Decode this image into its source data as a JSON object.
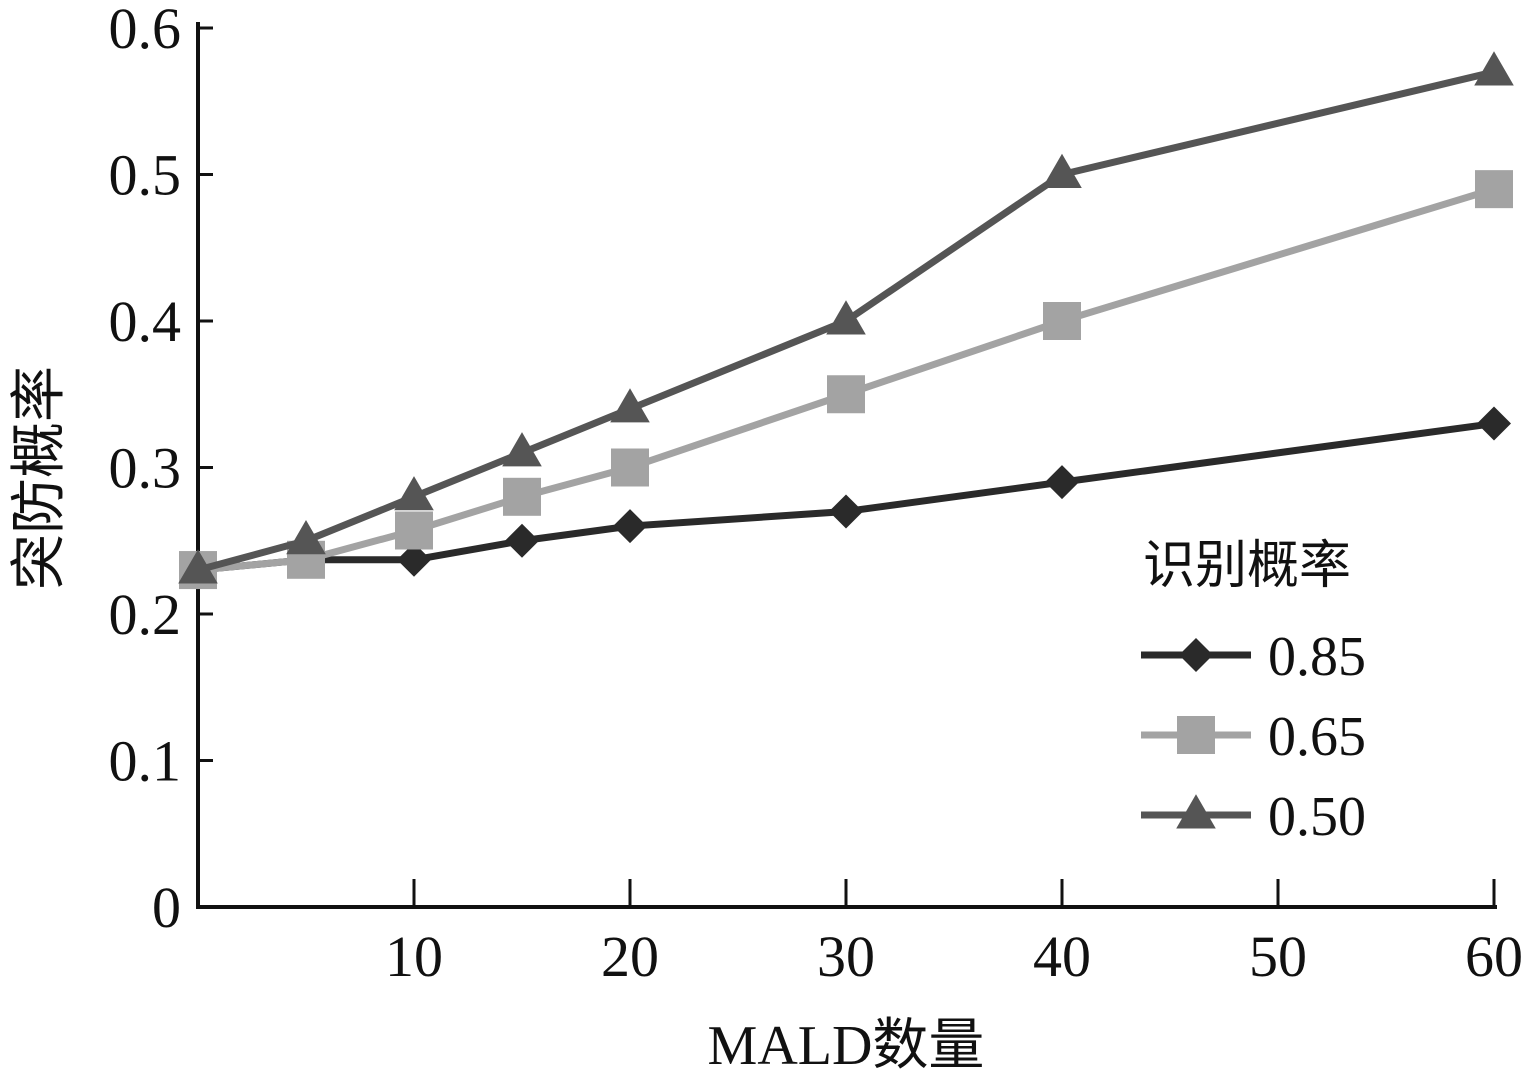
{
  "chart_data": {
    "type": "line",
    "xlabel": "MALD数量",
    "ylabel": "突防概率",
    "xlim": [
      0,
      60
    ],
    "ylim": [
      0,
      0.6
    ],
    "x_ticks": [
      "10",
      "20",
      "30",
      "40",
      "50",
      "60"
    ],
    "y_ticks": [
      "0",
      "0.1",
      "0.2",
      "0.3",
      "0.4",
      "0.5",
      "0.6"
    ],
    "grid": false,
    "legend": {
      "title": "识别概率",
      "position": "right"
    },
    "x": [
      0,
      5,
      10,
      15,
      20,
      30,
      40,
      60
    ],
    "series": [
      {
        "name": "0.85",
        "marker": "diamond",
        "color": "#2a2a2a",
        "values": [
          0.23,
          0.237,
          0.237,
          0.25,
          0.26,
          0.27,
          0.29,
          0.33
        ]
      },
      {
        "name": "0.65",
        "marker": "square",
        "color": "#a3a3a3",
        "values": [
          0.23,
          0.237,
          0.257,
          0.28,
          0.3,
          0.35,
          0.4,
          0.49
        ]
      },
      {
        "name": "0.50",
        "marker": "triangle",
        "color": "#555555",
        "values": [
          0.23,
          0.25,
          0.28,
          0.31,
          0.34,
          0.4,
          0.5,
          0.57
        ]
      }
    ]
  }
}
